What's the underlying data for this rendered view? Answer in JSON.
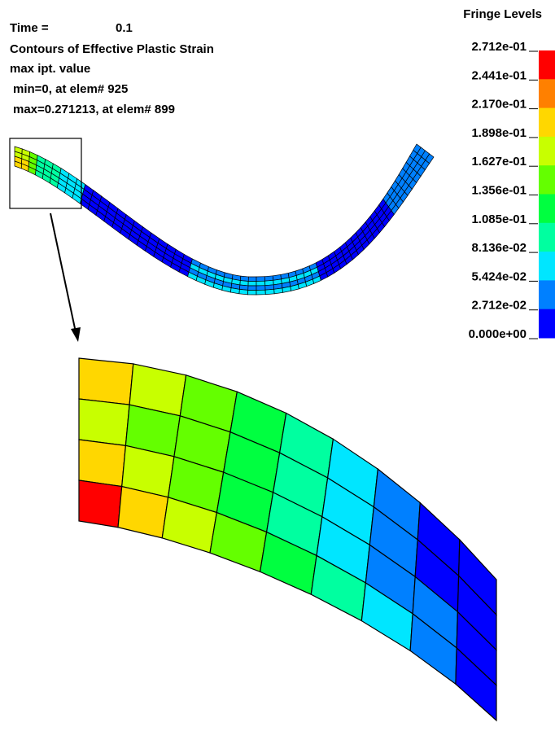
{
  "header": {
    "time_label": "Time =",
    "time_value": "0.1",
    "title": "Contours of Effective Plastic Strain",
    "subtitle": "max ipt. value",
    "min": "min=0, at elem# 925",
    "max": "max=0.271213, at elem# 899"
  },
  "fringe": {
    "title": "Fringe Levels",
    "levels": [
      "2.712e-01",
      "2.441e-01",
      "2.170e-01",
      "1.898e-01",
      "1.627e-01",
      "1.356e-01",
      "1.085e-01",
      "8.136e-02",
      "5.424e-02",
      "2.712e-02",
      "0.000e+00"
    ],
    "colors": [
      "#ff0000",
      "#ff8000",
      "#ffd700",
      "#c8ff00",
      "#64ff00",
      "#00ff40",
      "#00ffa0",
      "#00e6ff",
      "#0080ff",
      "#0000ff"
    ]
  }
}
